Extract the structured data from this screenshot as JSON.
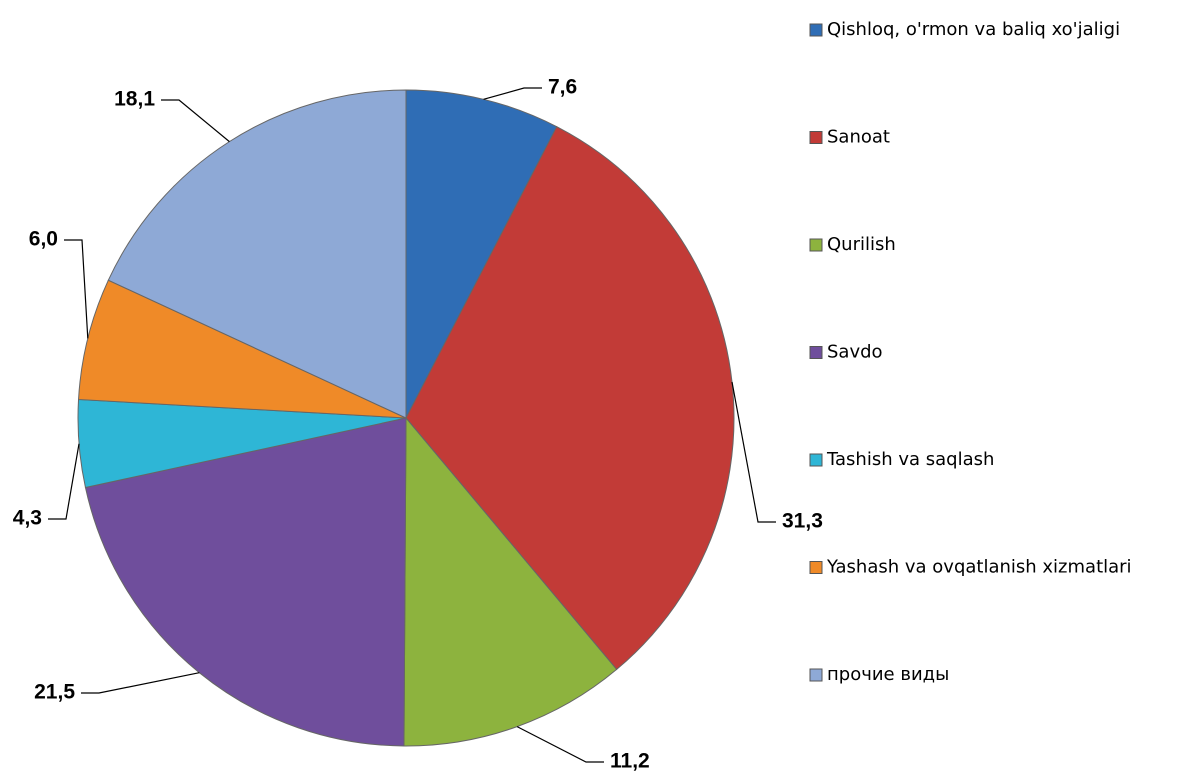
{
  "chart_data": {
    "type": "pie",
    "categories": [
      "Qishloq, o'rmon va baliq xo'jaligi",
      "Sanoat",
      "Qurilish",
      "Savdo",
      "Tashish va saqlash",
      "Yashash va ovqatlanish xizmatlari",
      "прочие виды"
    ],
    "values": [
      7.6,
      31.3,
      11.2,
      21.5,
      4.3,
      6.0,
      18.1
    ],
    "value_labels": [
      "7,6",
      "31,3",
      "11,2",
      "21,5",
      "4,3",
      "6,0",
      "18,1"
    ],
    "colors": [
      "#2f6db5",
      "#c23b37",
      "#8db33e",
      "#6f4e9c",
      "#2eb6d6",
      "#ef8a28",
      "#8ea9d6"
    ],
    "legend": "right"
  }
}
